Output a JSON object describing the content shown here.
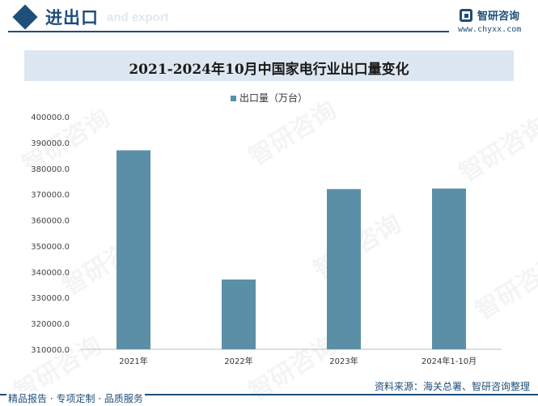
{
  "header": {
    "title": "进出口",
    "subtitle": "and export",
    "brand_name": "智研咨询",
    "brand_url": "www.chyxx.com"
  },
  "watermark_text": "智研咨询",
  "chart_data": {
    "type": "bar",
    "title": "2021-2024年10月中国家电行业出口量变化",
    "categories": [
      "2021年",
      "2022年",
      "2023年",
      "2024年1-10月"
    ],
    "series": [
      {
        "name": "出口量（万台）",
        "values": [
          387000,
          337000,
          372000,
          372200
        ],
        "color": "#5b8fa8"
      }
    ],
    "ylim": [
      310000,
      400000
    ],
    "yticks": [
      310000,
      320000,
      330000,
      340000,
      350000,
      360000,
      370000,
      380000,
      390000,
      400000
    ],
    "ytick_labels": [
      "310000.0",
      "320000.0",
      "330000.0",
      "340000.0",
      "350000.0",
      "360000.0",
      "370000.0",
      "380000.0",
      "390000.0",
      "400000.0"
    ],
    "xlabel": "",
    "ylabel": "",
    "grid": false,
    "legend_position": "top-center"
  },
  "footer": {
    "source": "资料来源：海关总署、智研咨询整理",
    "tagline": "精品报告 · 专项定制 · 品质服务"
  }
}
